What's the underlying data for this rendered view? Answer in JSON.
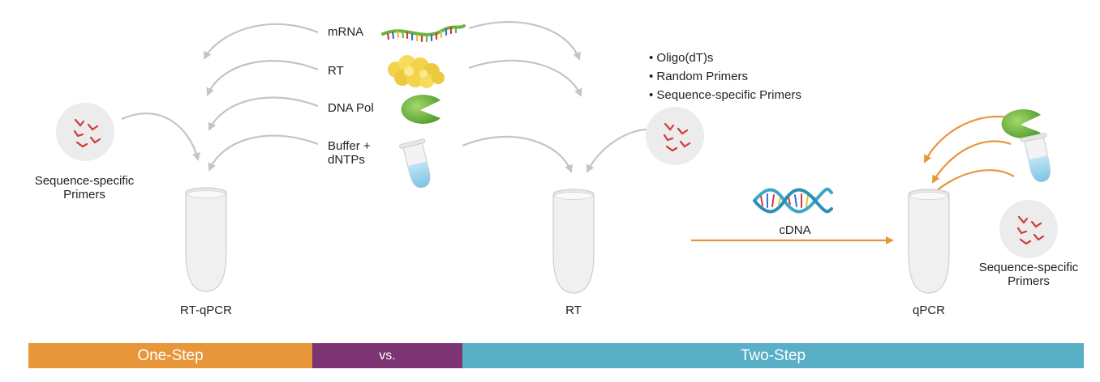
{
  "reagents": {
    "mrna": "mRNA",
    "rt": "RT",
    "dna_pol": "DNA Pol",
    "buffer_line1": "Buffer +",
    "buffer_line2": "dNTPs"
  },
  "left": {
    "primers_label_line1": "Sequence-specific",
    "primers_label_line2": "Primers",
    "tube_label": "RT-qPCR"
  },
  "middle": {
    "primer_options": [
      "Oligo(dT)s",
      "Random Primers",
      "Sequence-specific Primers"
    ],
    "tube_label": "RT"
  },
  "right": {
    "cdna_label": "cDNA",
    "tube_label": "qPCR",
    "primers_label_line1": "Sequence-specific",
    "primers_label_line2": "Primers"
  },
  "bar": {
    "one_step": "One-Step",
    "vs": "vs.",
    "two_step": "Two-Step"
  },
  "colors": {
    "one_step": "#E8963A",
    "vs": "#7D3472",
    "two_step": "#58AFC6",
    "gray_arrow": "#c4c4c4",
    "orange_arrow": "#E8963A",
    "primer_red": "#D33A3A",
    "pol_green": "#6DB33F",
    "enzyme_yellow": "#F2D34B"
  }
}
